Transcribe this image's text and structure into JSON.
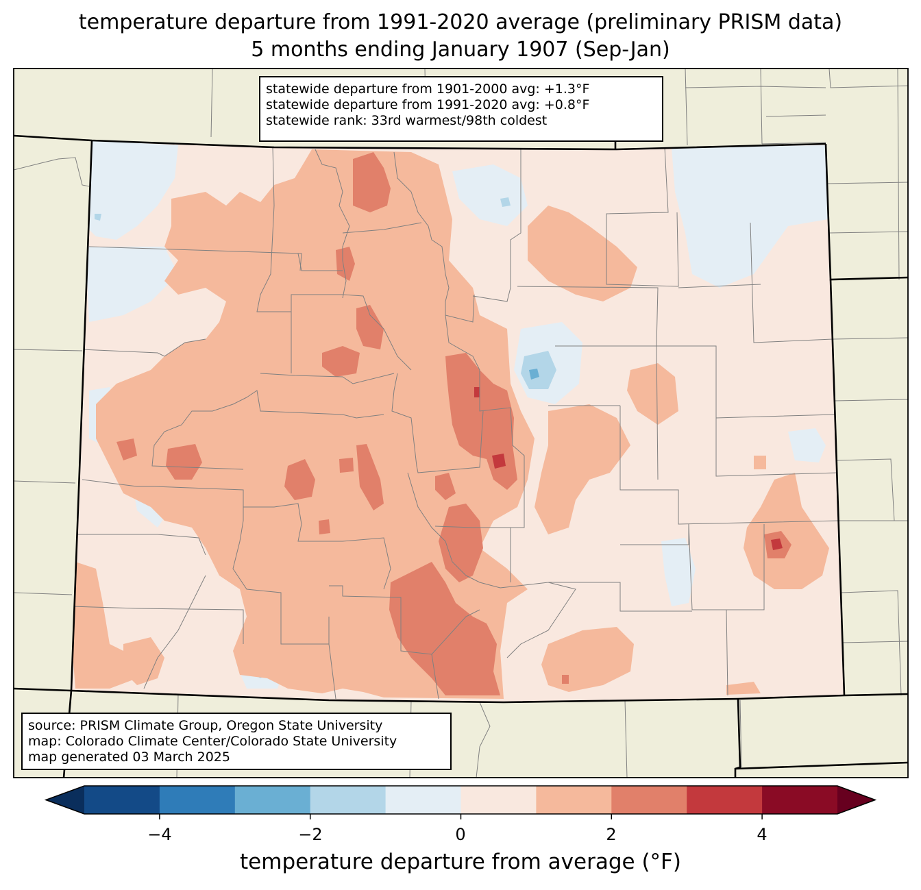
{
  "title_line1": "temperature departure from 1991-2020 average (preliminary PRISM data)",
  "title_line2": "5 months ending January 1907 (Sep-Jan)",
  "stats": {
    "line1": "statewide departure from 1901-2000 avg: +1.3°F",
    "line2": "statewide departure from 1991-2020 avg: +0.8°F",
    "line3": "statewide rank: 33rd warmest/98th coldest"
  },
  "source": {
    "line1": "source: PRISM Climate Group, Oregon State University",
    "line2": "map: Colorado Climate Center/Colorado State University",
    "line3": "map generated 03 March 2025"
  },
  "colorbar": {
    "label": "temperature departure from average (°F)",
    "ticks": [
      "−4",
      "−2",
      "0",
      "2",
      "4"
    ],
    "bins": [
      {
        "from": -5,
        "to": -4,
        "color": "#134a87"
      },
      {
        "from": -4,
        "to": -3,
        "color": "#2f7cb8"
      },
      {
        "from": -3,
        "to": -2,
        "color": "#6aafd3"
      },
      {
        "from": -2,
        "to": -1,
        "color": "#b3d6e8"
      },
      {
        "from": -1,
        "to": 0,
        "color": "#e4eef5"
      },
      {
        "from": 0,
        "to": 1,
        "color": "#f9e8df"
      },
      {
        "from": 1,
        "to": 2,
        "color": "#f5b99c"
      },
      {
        "from": 2,
        "to": 3,
        "color": "#e1806a"
      },
      {
        "from": 3,
        "to": 4,
        "color": "#c3393d"
      },
      {
        "from": 4,
        "to": 5,
        "color": "#8a0b25"
      }
    ],
    "under_color": "#0a2e5c",
    "over_color": "#67001f"
  },
  "colors": {
    "land": "#efeedb",
    "state_border": "#000000",
    "county_border": "#808080"
  }
}
